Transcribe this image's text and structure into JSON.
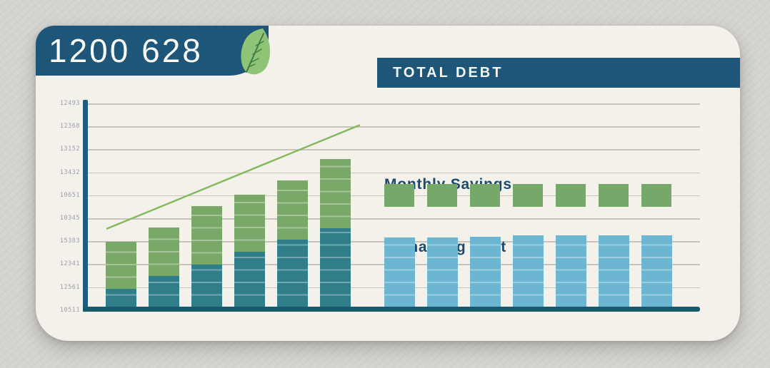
{
  "header": {
    "badge_number": "1200 628",
    "banner_title": "TOTAL DEBT"
  },
  "colors": {
    "accent_dark_blue": "#1d5678",
    "axis_blue": "#1e5c7e",
    "baseline_teal": "#175a69",
    "bar_green": "#79a868",
    "bar_teal": "#2f7e89",
    "bar_light_blue": "#6db6d2",
    "square_green": "#76a86a",
    "trend_green": "#84b95e",
    "label_blue": "#1b4a70",
    "card_bg": "#f4f1ea",
    "page_bg": "#d6d4d0",
    "gridline": "#c8c4bc",
    "tick_label": "#9aa0ac"
  },
  "chart_data": {
    "type": "bar",
    "title": "TOTAL DEBT",
    "grid": true,
    "ylim": [
      0,
      10
    ],
    "y_tick_labels_top_to_bottom": [
      "12493",
      "12368",
      "13152",
      "13432",
      "10651",
      "10345",
      "15383",
      "12341",
      "12561",
      "10511"
    ],
    "left_stacked_bars": {
      "series": [
        {
          "name": "Remaining Debt",
          "color": "#2f7e89",
          "values": [
            0.78,
            1.33,
            1.83,
            2.39,
            2.92,
            3.41
          ]
        },
        {
          "name": "Monthly Savings",
          "color": "#79a868",
          "values": [
            2.05,
            2.11,
            2.54,
            2.48,
            2.58,
            3.01
          ]
        }
      ]
    },
    "trend_line": {
      "start": 3.4,
      "end": 7.9,
      "color": "#84b95e"
    },
    "right_panel": {
      "monthly_savings": {
        "label": "Monthly Savings",
        "color": "#76a86a",
        "values": [
          1,
          1,
          1,
          1,
          1,
          1,
          1
        ]
      },
      "remaining_debt": {
        "label": "Remaining Debt",
        "color": "#6db6d2",
        "values": [
          3.0,
          3.0,
          3.05,
          3.1,
          3.1,
          3.1,
          3.1
        ]
      }
    }
  }
}
